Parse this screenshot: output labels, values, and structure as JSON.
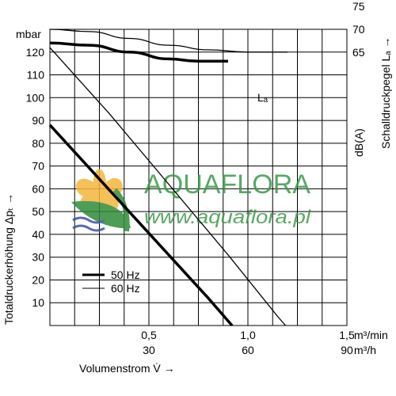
{
  "chart_data": {
    "type": "line",
    "y_unit": "mbar",
    "ylabel": "Totaldruckerhöhung Δpₜ →",
    "xlabel": "Volumenstrom V̇ →",
    "right_unit": "dB(A)",
    "right_label": "Schalldruckpegel Lₐ →",
    "x_unit_1": "m³/min",
    "x_unit_2": "m³/h",
    "xlim": [
      0,
      1.5
    ],
    "ylim": [
      0,
      130
    ],
    "y_ticks": [
      10,
      20,
      30,
      40,
      50,
      60,
      70,
      80,
      90,
      100,
      110,
      120
    ],
    "x_ticks_1": [
      {
        "v": 0.5,
        "label": "0,5"
      },
      {
        "v": 1.0,
        "label": "1,0"
      },
      {
        "v": 1.5,
        "label": "1,5"
      }
    ],
    "x_ticks_2": [
      {
        "v": 0.5,
        "label": "30"
      },
      {
        "v": 1.0,
        "label": "60"
      },
      {
        "v": 1.5,
        "label": "90"
      }
    ],
    "right_ticks": [
      {
        "db": 65,
        "y": 120
      },
      {
        "db": 70,
        "y": 130
      },
      {
        "db": 75,
        "y": 140
      }
    ],
    "noise_label": "Lₐ",
    "legend": [
      "50 Hz",
      "60 Hz"
    ],
    "series": [
      {
        "name": "50 Hz",
        "kind": "pressure",
        "points": [
          [
            0,
            88
          ],
          [
            0.2,
            69
          ],
          [
            0.4,
            50
          ],
          [
            0.6,
            31
          ],
          [
            0.8,
            12
          ],
          [
            0.92,
            0
          ]
        ]
      },
      {
        "name": "60 Hz",
        "kind": "pressure",
        "points": [
          [
            0,
            122
          ],
          [
            0.3,
            93
          ],
          [
            0.6,
            62
          ],
          [
            0.9,
            31
          ],
          [
            1.15,
            4
          ],
          [
            1.19,
            0
          ]
        ]
      },
      {
        "name": "50 Hz",
        "kind": "noise",
        "points": [
          [
            0,
            67
          ],
          [
            0.2,
            66.5
          ],
          [
            0.4,
            65
          ],
          [
            0.6,
            63.5
          ],
          [
            0.75,
            63
          ],
          [
            0.9,
            63
          ]
        ]
      },
      {
        "name": "60 Hz",
        "kind": "noise",
        "points": [
          [
            0,
            70
          ],
          [
            0.2,
            69.5
          ],
          [
            0.4,
            68
          ],
          [
            0.6,
            66.5
          ],
          [
            0.8,
            65.5
          ],
          [
            1.0,
            65
          ],
          [
            1.2,
            65
          ]
        ]
      }
    ]
  },
  "watermark": {
    "brand": "AQUAFLORA",
    "url": "www.aquaflora.pl"
  }
}
